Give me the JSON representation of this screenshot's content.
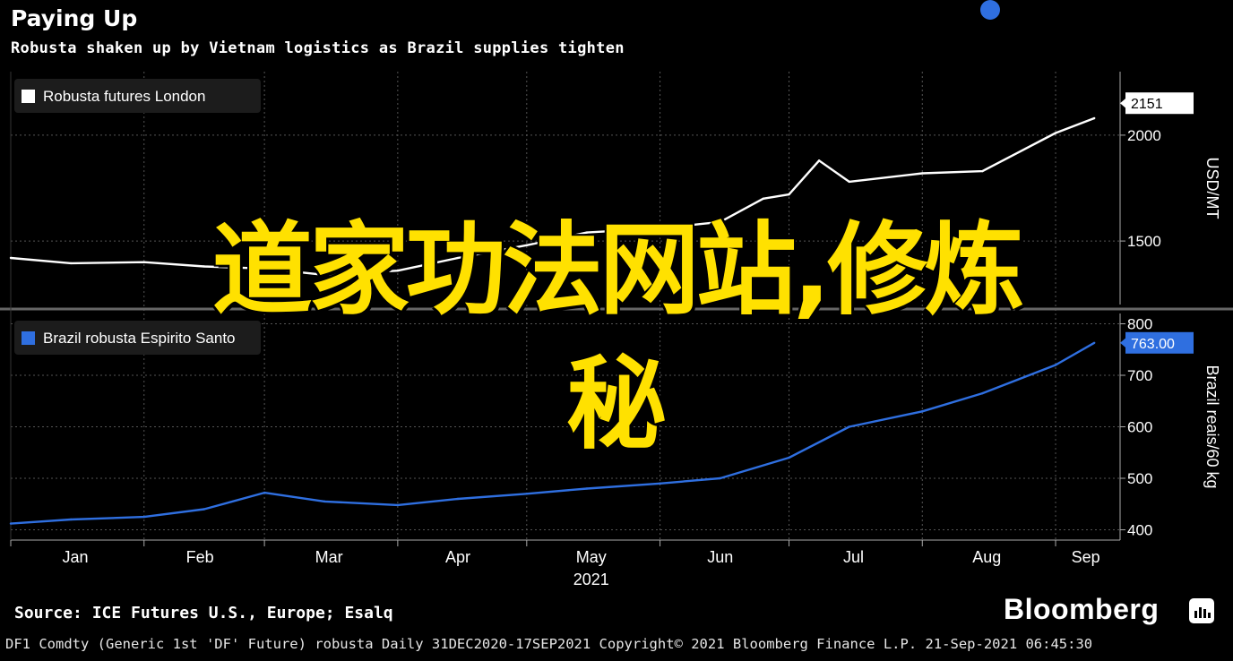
{
  "header": {
    "title": "Paying Up",
    "subtitle": "Robusta shaken up by Vietnam logistics as Brazil supplies tighten"
  },
  "overlay": {
    "line1": "道家功法网站,修炼",
    "line2": "秘"
  },
  "colors": {
    "background": "#000000",
    "london": "#ffffff",
    "brazil": "#2f6fe0",
    "overlay_text": "#ffe100"
  },
  "chart_data": [
    {
      "type": "line",
      "series": [
        {
          "name": "Robusta futures London",
          "x": [
            "2021-01-01",
            "2021-01-15",
            "2021-02-01",
            "2021-02-15",
            "2021-03-01",
            "2021-03-15",
            "2021-04-01",
            "2021-04-15",
            "2021-05-01",
            "2021-05-15",
            "2021-06-01",
            "2021-06-15",
            "2021-06-25",
            "2021-07-01",
            "2021-07-08",
            "2021-07-15",
            "2021-08-01",
            "2021-08-15",
            "2021-09-01",
            "2021-09-10"
          ],
          "values": [
            1420,
            1395,
            1400,
            1380,
            1370,
            1340,
            1360,
            1420,
            1480,
            1540,
            1560,
            1590,
            1700,
            1720,
            1880,
            1780,
            1820,
            1830,
            2010,
            2080
          ]
        }
      ],
      "end_label": "2151",
      "ylabel": "USD/MT",
      "yticks": [
        1500,
        2000
      ],
      "ylim": [
        1200,
        2300
      ],
      "legend_position": "top-left",
      "grid": true
    },
    {
      "type": "line",
      "series": [
        {
          "name": "Brazil robusta Espirito Santo",
          "x": [
            "2021-01-01",
            "2021-01-15",
            "2021-02-01",
            "2021-02-15",
            "2021-03-01",
            "2021-03-15",
            "2021-04-01",
            "2021-04-15",
            "2021-05-01",
            "2021-05-15",
            "2021-06-01",
            "2021-06-15",
            "2021-07-01",
            "2021-07-15",
            "2021-08-01",
            "2021-08-15",
            "2021-09-01",
            "2021-09-10"
          ],
          "values": [
            412,
            420,
            425,
            440,
            472,
            455,
            448,
            460,
            470,
            480,
            490,
            500,
            540,
            600,
            630,
            665,
            720,
            763
          ]
        }
      ],
      "end_label": "763.00",
      "ylabel": "Brazil reais/60 kg",
      "yticks": [
        400,
        500,
        600,
        700,
        800
      ],
      "ylim": [
        380,
        820
      ],
      "legend_position": "top-left",
      "grid": true
    }
  ],
  "x_axis": {
    "months": [
      "Jan",
      "Feb",
      "Mar",
      "Apr",
      "May",
      "Jun",
      "Jul",
      "Aug",
      "Sep"
    ],
    "year": "2021"
  },
  "footer": {
    "source": "Source: ICE Futures U.S., Europe; Esalq",
    "brand": "Bloomberg",
    "meta": "DF1 Comdty (Generic 1st 'DF' Future) robusta  Daily 31DEC2020-17SEP2021  Copyright© 2021 Bloomberg Finance L.P.  21-Sep-2021 06:45:30"
  }
}
